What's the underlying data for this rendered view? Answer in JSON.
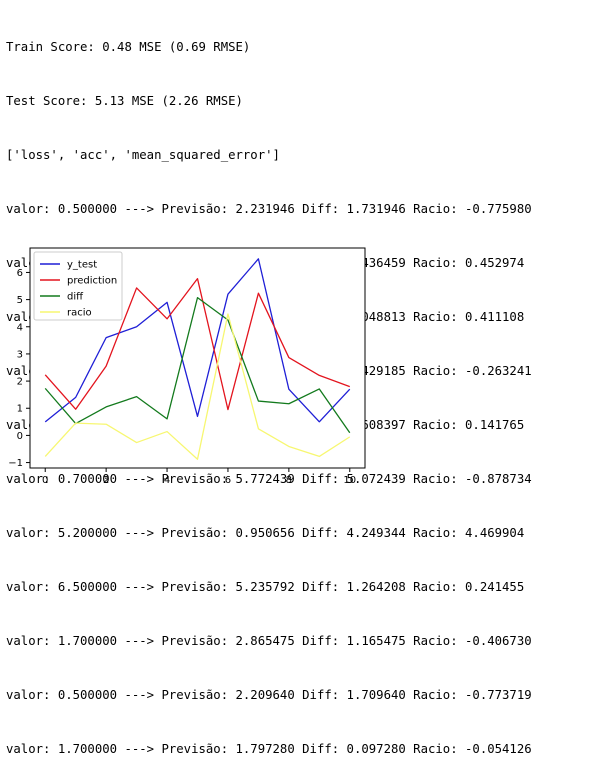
{
  "console": {
    "train_score": "Train Score: 0.48 MSE (0.69 RMSE)",
    "test_score": "Test Score: 5.13 MSE (2.26 RMSE)",
    "metrics": "['loss', 'acc', 'mean_squared_error']",
    "rows": [
      "valor: 0.500000 ---> Previsão: 2.231946 Diff: 1.731946 Racio: -0.775980",
      "valor: 1.400000 ---> Previsão: 0.963541 Diff: 0.436459 Racio: 0.452974",
      "valor: 3.600000 ---> Previsão: 2.551187 Diff: 1.048813 Racio: 0.411108",
      "valor: 4.000000 ---> Previsão: 5.429185 Diff: 1.429185 Racio: -0.263241",
      "valor: 4.900000 ---> Previsão: 4.291603 Diff: 0.608397 Racio: 0.141765",
      "valor: 0.700000 ---> Previsão: 5.772439 Diff: 5.072439 Racio: -0.878734",
      "valor: 5.200000 ---> Previsão: 0.950656 Diff: 4.249344 Racio: 4.469904",
      "valor: 6.500000 ---> Previsão: 5.235792 Diff: 1.264208 Racio: 0.241455",
      "valor: 1.700000 ---> Previsão: 2.865475 Diff: 1.165475 Racio: -0.406730",
      "valor: 0.500000 ---> Previsão: 2.209640 Diff: 1.709640 Racio: -0.773719",
      "valor: 1.700000 ---> Previsão: 1.797280 Diff: 0.097280 Racio: -0.054126"
    ]
  },
  "chart_data": {
    "type": "line",
    "x": [
      0,
      1,
      2,
      3,
      4,
      5,
      6,
      7,
      8,
      9,
      10
    ],
    "xlim": [
      -0.5,
      10.5
    ],
    "ylim": [
      -1.2,
      6.9
    ],
    "xticks": [
      0,
      2,
      4,
      6,
      8,
      10
    ],
    "yticks": [
      -1,
      0,
      1,
      2,
      3,
      4,
      5,
      6
    ],
    "legend_position": "top-left",
    "grid": false,
    "series": [
      {
        "name": "y_test",
        "color": "#1f1fd6",
        "values": [
          0.5,
          1.4,
          3.6,
          4.0,
          4.9,
          0.7,
          5.2,
          6.5,
          1.7,
          0.5,
          1.7
        ]
      },
      {
        "name": "prediction",
        "color": "#e3141e",
        "values": [
          2.231946,
          0.963541,
          2.551187,
          5.429185,
          4.291603,
          5.772439,
          0.950656,
          5.235792,
          2.865475,
          2.20964,
          1.79728
        ]
      },
      {
        "name": "diff",
        "color": "#137a1d",
        "values": [
          1.731946,
          0.436459,
          1.048813,
          1.429185,
          0.608397,
          5.072439,
          4.249344,
          1.264208,
          1.165475,
          1.70964,
          0.09728
        ]
      },
      {
        "name": "racio",
        "color": "#f7f771",
        "values": [
          -0.77598,
          0.452974,
          0.411108,
          -0.263241,
          0.141765,
          -0.878734,
          4.469904,
          0.241455,
          -0.40673,
          -0.773719,
          -0.054126
        ]
      }
    ]
  }
}
